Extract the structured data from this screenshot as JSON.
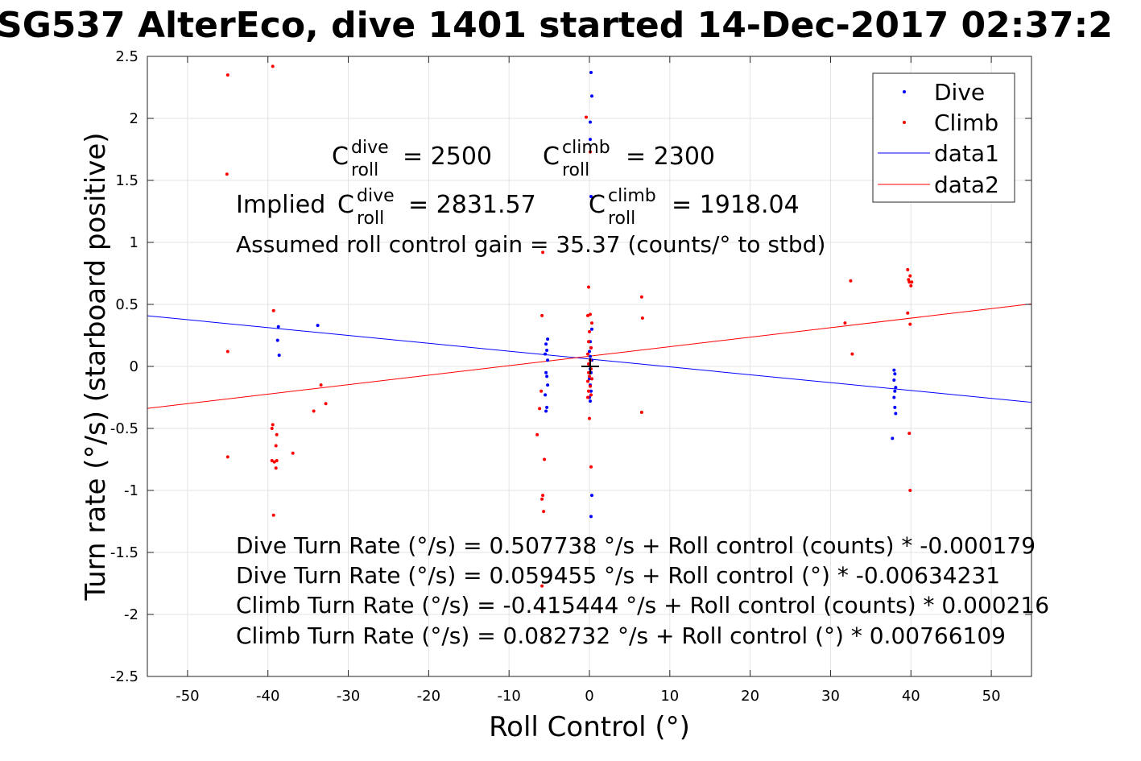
{
  "chart_data": {
    "type": "scatter",
    "title": "SG537 AlterEco, dive 1401 started 14-Dec-2017 02:37:2",
    "xlabel": "Roll Control (°)",
    "ylabel": "Turn rate (°/s) (starboard positive)",
    "xlim": [
      -55,
      55
    ],
    "ylim": [
      -2.5,
      2.5
    ],
    "x_ticks": [
      -50,
      -40,
      -30,
      -20,
      -10,
      0,
      10,
      20,
      30,
      40,
      50
    ],
    "y_ticks": [
      -2.5,
      -2,
      -1.5,
      -1,
      -0.5,
      0,
      0.5,
      1,
      1.5,
      2,
      2.5
    ],
    "grid": true,
    "legend_position": "top-right",
    "series": [
      {
        "name": "Dive",
        "kind": "points",
        "color": "#0000ff",
        "points": [
          [
            0.2,
            2.37
          ],
          [
            0.3,
            2.18
          ],
          [
            0.1,
            1.97
          ],
          [
            0.1,
            1.83
          ],
          [
            0.2,
            1.37
          ],
          [
            0.3,
            0.3
          ],
          [
            0.1,
            0.2
          ],
          [
            0.2,
            0.15
          ],
          [
            0.0,
            0.12
          ],
          [
            0.1,
            0.08
          ],
          [
            0.3,
            0.05
          ],
          [
            0.0,
            0.02
          ],
          [
            0.1,
            -0.02
          ],
          [
            0.2,
            -0.05
          ],
          [
            0.0,
            -0.1
          ],
          [
            0.1,
            -0.15
          ],
          [
            0.2,
            -0.2
          ],
          [
            0.0,
            -0.25
          ],
          [
            0.1,
            -0.28
          ],
          [
            0.3,
            -1.04
          ],
          [
            0.2,
            -1.21
          ],
          [
            -5.2,
            0.22
          ],
          [
            -5.4,
            0.18
          ],
          [
            -5.3,
            0.13
          ],
          [
            -5.5,
            0.1
          ],
          [
            -5.2,
            0.05
          ],
          [
            -5.4,
            -0.05
          ],
          [
            -5.3,
            -0.08
          ],
          [
            -5.2,
            -0.15
          ],
          [
            -5.5,
            -0.23
          ],
          [
            -5.3,
            -0.33
          ],
          [
            -5.4,
            -0.36
          ],
          [
            -38.7,
            0.32
          ],
          [
            -38.8,
            0.21
          ],
          [
            -38.6,
            0.09
          ],
          [
            -33.8,
            0.33
          ],
          [
            37.9,
            -0.03
          ],
          [
            38.0,
            -0.06
          ],
          [
            37.9,
            -0.11
          ],
          [
            38.1,
            -0.17
          ],
          [
            38.0,
            -0.2
          ],
          [
            37.9,
            -0.25
          ],
          [
            38.0,
            -0.33
          ],
          [
            38.1,
            -0.38
          ],
          [
            37.7,
            -0.58
          ]
        ]
      },
      {
        "name": "Climb",
        "kind": "points",
        "color": "#ff0000",
        "points": [
          [
            -45,
            2.35
          ],
          [
            -39.4,
            2.42
          ],
          [
            -45.1,
            1.55
          ],
          [
            -45,
            0.12
          ],
          [
            -45,
            -0.73
          ],
          [
            -39.3,
            0.45
          ],
          [
            -39.4,
            -0.47
          ],
          [
            -39.5,
            -0.5
          ],
          [
            -38.9,
            -0.55
          ],
          [
            -39.0,
            -0.64
          ],
          [
            -39.5,
            -0.76
          ],
          [
            -39.2,
            -0.77
          ],
          [
            -38.9,
            -0.76
          ],
          [
            -39.0,
            -0.82
          ],
          [
            -39.3,
            -1.2
          ],
          [
            -36.9,
            -0.7
          ],
          [
            -34.3,
            -0.36
          ],
          [
            -33.4,
            -0.15
          ],
          [
            -32.8,
            -0.3
          ],
          [
            -0.4,
            2.01
          ],
          [
            0.1,
            1.73
          ],
          [
            -5.8,
            0.92
          ],
          [
            -5.9,
            0.41
          ],
          [
            -6.0,
            -0.2
          ],
          [
            -6.2,
            -0.34
          ],
          [
            -6.5,
            -0.55
          ],
          [
            -5.6,
            -0.75
          ],
          [
            -5.8,
            -1.04
          ],
          [
            -5.9,
            -1.07
          ],
          [
            -5.7,
            -1.17
          ],
          [
            -5.9,
            -1.77
          ],
          [
            -5.9,
            -1.96
          ],
          [
            -0.1,
            0.64
          ],
          [
            0.1,
            0.42
          ],
          [
            -0.2,
            0.41
          ],
          [
            0.3,
            0.35
          ],
          [
            0.0,
            0.28
          ],
          [
            -0.1,
            0.2
          ],
          [
            0.2,
            0.15
          ],
          [
            -0.2,
            0.1
          ],
          [
            0.1,
            0.05
          ],
          [
            -0.1,
            0.02
          ],
          [
            0.2,
            -0.02
          ],
          [
            -0.1,
            -0.05
          ],
          [
            0.0,
            -0.08
          ],
          [
            0.3,
            -0.1
          ],
          [
            -0.2,
            -0.12
          ],
          [
            0.1,
            -0.16
          ],
          [
            -0.1,
            -0.2
          ],
          [
            0.2,
            -0.23
          ],
          [
            -0.2,
            -0.25
          ],
          [
            0.0,
            -0.42
          ],
          [
            0.2,
            -0.81
          ],
          [
            6.5,
            0.56
          ],
          [
            6.6,
            0.39
          ],
          [
            6.5,
            -0.37
          ],
          [
            31.8,
            0.35
          ],
          [
            32.5,
            0.69
          ],
          [
            32.7,
            0.1
          ],
          [
            39.6,
            0.78
          ],
          [
            39.9,
            0.73
          ],
          [
            39.7,
            0.7
          ],
          [
            40.1,
            0.68
          ],
          [
            39.8,
            0.68
          ],
          [
            40.0,
            0.65
          ],
          [
            39.6,
            0.43
          ],
          [
            39.9,
            0.34
          ],
          [
            39.8,
            -0.54
          ],
          [
            39.9,
            -1.0
          ]
        ]
      },
      {
        "name": "data1",
        "kind": "line",
        "color": "#0000ff",
        "intercept": 0.059455,
        "slope": -0.00634231
      },
      {
        "name": "data2",
        "kind": "line",
        "color": "#ff0000",
        "intercept": 0.082732,
        "slope": 0.00766109
      }
    ],
    "annotations": {
      "c_roll_dive": {
        "base": "C",
        "sup": "dive",
        "sub": "roll",
        "value": "= 2500"
      },
      "c_roll_climb": {
        "base": "C",
        "sup": "climb",
        "sub": "roll",
        "value": "= 2300"
      },
      "implied_prefix": "Implied",
      "implied_dive": {
        "base": "C",
        "sup": "dive",
        "sub": "roll",
        "value": "= 2831.57"
      },
      "implied_climb": {
        "base": "C",
        "sup": "climb",
        "sub": "roll",
        "value": "= 1918.04"
      },
      "gain": "Assumed roll control gain = 35.37 (counts/° to stbd)",
      "fit_lines": [
        "Dive Turn Rate (°/s) = 0.507738 °/s + Roll control (counts) * -0.000179",
        "Dive Turn Rate (°/s) = 0.059455 °/s + Roll control (°) * -0.00634231",
        "Climb Turn Rate (°/s) = -0.415444 °/s + Roll control (counts) * 0.000216",
        "Climb Turn Rate (°/s) = 0.082732 °/s + Roll control (°) * 0.00766109"
      ]
    }
  }
}
